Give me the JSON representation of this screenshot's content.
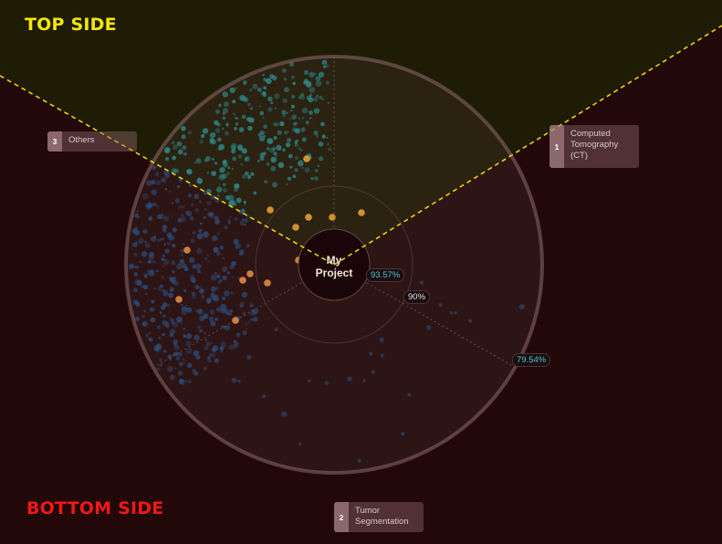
{
  "labels": {
    "top_side": "TOP SIDE",
    "bottom_side": "BOTTOM SIDE",
    "center_line1": "My",
    "center_line2": "Project"
  },
  "categories": [
    {
      "num": "1",
      "label": "Computed\nTomography\n(CT)"
    },
    {
      "num": "2",
      "label": "Tumor\nSegmentation"
    },
    {
      "num": "3",
      "label": "Others"
    }
  ],
  "percentages": {
    "a": "93.57%",
    "b": "90%",
    "c": "79.54%"
  },
  "colors": {
    "top_region": "#1e1c04",
    "bottom_region": "#220808",
    "divider_line": "#e8d400",
    "dot_teal": "#2e8a8a",
    "dot_blue": "#2b4c78",
    "dot_orange": "#e08a40",
    "dot_gold": "#e0a030"
  },
  "icons": [
    "category-number-badge"
  ]
}
